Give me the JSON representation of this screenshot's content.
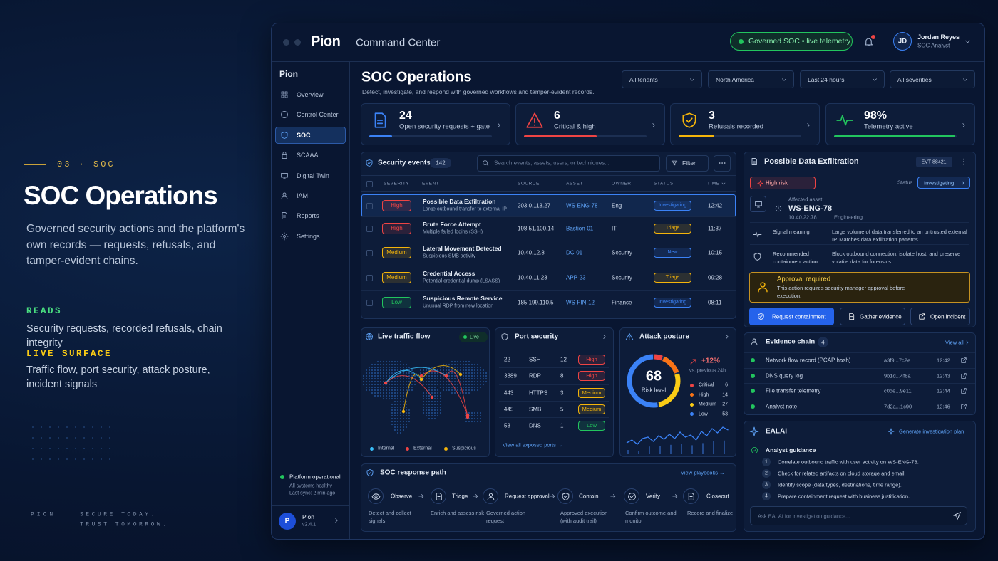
{
  "intro": {
    "eyebrow": "03 · SOC",
    "title": "SOC Operations",
    "description": "Governed security actions and the platform's own records — requests, refusals, and tamper-evident chains.",
    "sections": [
      {
        "label": "READS",
        "text": "Security requests, recorded refusals, chain integrity",
        "color": "#4ade80"
      },
      {
        "label": "LIVE SURFACE",
        "text": "Traffic flow, port security, attack posture, incident signals",
        "color": "#facc15"
      }
    ],
    "footer": {
      "brand": "PION",
      "tagline": [
        "SECURE TODAY.",
        "TRUST TOMORROW."
      ]
    }
  },
  "header": {
    "brand": "Pion",
    "product": "Command Center",
    "status": "Governed SOC • live telemetry",
    "user": {
      "initials": "JD",
      "name": "Jordan Reyes",
      "role": "SOC Analyst"
    }
  },
  "sidebar": {
    "brand": "Pion",
    "items": [
      {
        "label": "Overview",
        "active": false
      },
      {
        "label": "Control Center",
        "active": false
      },
      {
        "label": "SOC",
        "active": true
      },
      {
        "label": "SCAAA",
        "active": false
      },
      {
        "label": "Digital Twin",
        "active": false
      },
      {
        "label": "IAM",
        "active": false
      },
      {
        "label": "Reports",
        "active": false
      },
      {
        "label": "Settings",
        "active": false
      }
    ],
    "status": {
      "title": "Platform operational",
      "detail": "All systems healthy",
      "sync": "Last sync: 2 min ago"
    },
    "workspace": {
      "initial": "P",
      "name": "Pion",
      "version": "v2.4.1"
    }
  },
  "page": {
    "title": "SOC Operations",
    "subtitle": "Detect, investigate, and respond with governed workflows and tamper-evident records.",
    "filters": [
      "All tenants",
      "North America",
      "Last 24 hours",
      "All severities"
    ]
  },
  "kpis": [
    {
      "value": "24",
      "label": "Open security requests + gate",
      "color": "#3b82f6"
    },
    {
      "value": "6",
      "label": "Critical & high",
      "color": "#ef4444"
    },
    {
      "value": "3",
      "label": "Refusals recorded",
      "color": "#f5b50b"
    },
    {
      "value": "98%",
      "label": "Telemetry active",
      "color": "#22c55e"
    }
  ],
  "events": {
    "title": "Security events",
    "count": "142",
    "search": "Search events, assets, users, or techniques...",
    "filter": "Filter",
    "columns": [
      "SEVERITY",
      "EVENT",
      "SOURCE",
      "ASSET",
      "OWNER",
      "STATUS",
      "TIME"
    ],
    "rows": [
      {
        "severity": "High",
        "severity_color": "#ef4444",
        "event": "Possible Data Exfiltration",
        "detail": "Large outbound transfer to external IP",
        "source": "203.0.113.27",
        "asset": "WS-ENG-78",
        "owner": "Eng",
        "status": "Investigating",
        "status_color": "#3b82f6",
        "time": "12:42"
      },
      {
        "severity": "High",
        "severity_color": "#ef4444",
        "event": "Brute Force Attempt",
        "detail": "Multiple failed logins (SSH)",
        "source": "198.51.100.14",
        "asset": "Bastion-01",
        "owner": "IT",
        "status": "Triage",
        "status_color": "#f5b50b",
        "time": "11:37"
      },
      {
        "severity": "Medium",
        "severity_color": "#f5b50b",
        "event": "Lateral Movement Detected",
        "detail": "Suspicious SMB activity",
        "source": "10.40.12.8",
        "asset": "DC-01",
        "owner": "Security",
        "status": "New",
        "status_color": "#3b82f6",
        "time": "10:15"
      },
      {
        "severity": "Medium",
        "severity_color": "#f5b50b",
        "event": "Credential Access",
        "detail": "Potential credential dump (LSASS)",
        "source": "10.40.11.23",
        "asset": "APP-23",
        "owner": "Security",
        "status": "Triage",
        "status_color": "#f5b50b",
        "time": "09:28"
      },
      {
        "severity": "Low",
        "severity_color": "#22c55e",
        "event": "Suspicious Remote Service",
        "detail": "Unusual RDP from new location",
        "source": "185.199.110.5",
        "asset": "WS-FIN-12",
        "owner": "Finance",
        "status": "Investigating",
        "status_color": "#3b82f6",
        "time": "08:11"
      }
    ]
  },
  "detail": {
    "title": "Possible Data Exfiltration",
    "id": "EVT-88421",
    "risk": "High risk",
    "status_label": "Status",
    "status": "Investigating",
    "asset_label": "Affected asset",
    "asset": "WS-ENG-78",
    "ip": "10.40.22.78",
    "department": "Engineering",
    "fields": [
      {
        "label": "Signal meaning",
        "text": "Large volume of data transferred to an untrusted external IP. Matches data exfiltration patterns."
      },
      {
        "label": "Recommended containment action",
        "text": "Block outbound connection, isolate host, and preserve volatile data for forensics."
      }
    ],
    "approval": {
      "title": "Approval required",
      "text": "This action requires security manager approval before execution."
    },
    "actions": [
      "Request containment",
      "Gather evidence",
      "Open incident"
    ]
  },
  "evidence": {
    "title": "Evidence chain",
    "count": "4",
    "link": "View all",
    "items": [
      {
        "name": "Network flow record (PCAP hash)",
        "hash": "a3f9...7c2e",
        "time": "12:42"
      },
      {
        "name": "DNS query log",
        "hash": "9b1d...4f8a",
        "time": "12:43"
      },
      {
        "name": "File transfer telemetry",
        "hash": "c0de...9e11",
        "time": "12:44"
      },
      {
        "name": "Analyst note",
        "hash": "7d2a...1c90",
        "time": "12:46"
      }
    ]
  },
  "assistant": {
    "title": "EALAI",
    "action": "Generate investigation plan",
    "guidance": "Analyst guidance",
    "steps": [
      {
        "number": "1",
        "text": "Correlate outbound traffic with user activity on WS-ENG-78."
      },
      {
        "number": "2",
        "text": "Check for related artifacts on cloud storage and email."
      },
      {
        "number": "3",
        "text": "Identify scope (data types, destinations, time range)."
      },
      {
        "number": "4",
        "text": "Prepare containment request with business justification."
      }
    ],
    "placeholder": "Ask EALAI for investigation guidance..."
  },
  "traffic": {
    "title": "Live traffic flow",
    "badge": "Live",
    "legend": [
      {
        "label": "Internal",
        "color": "#38bdf8"
      },
      {
        "label": "External",
        "color": "#ef4444"
      },
      {
        "label": "Suspicious",
        "color": "#f5b50b"
      }
    ]
  },
  "ports": {
    "title": "Port security",
    "link": "View all exposed ports →",
    "rows": [
      {
        "port": "22",
        "service": "SSH",
        "count": "12",
        "risk": "High",
        "color": "#ef4444"
      },
      {
        "port": "3389",
        "service": "RDP",
        "count": "8",
        "risk": "High",
        "color": "#ef4444"
      },
      {
        "port": "443",
        "service": "HTTPS",
        "count": "3",
        "risk": "Medium",
        "color": "#f5b50b"
      },
      {
        "port": "445",
        "service": "SMB",
        "count": "5",
        "risk": "Medium",
        "color": "#f5b50b"
      },
      {
        "port": "53",
        "service": "DNS",
        "count": "1",
        "risk": "Low",
        "color": "#22c55e"
      }
    ]
  },
  "posture": {
    "title": "Attack posture",
    "score": "68",
    "score_label": "Risk level",
    "change": "+12%",
    "change_label": "vs. previous 24h",
    "levels": [
      {
        "label": "Critical",
        "count": 6,
        "color": "#ef4444"
      },
      {
        "label": "High",
        "count": 14,
        "color": "#f97316"
      },
      {
        "label": "Medium",
        "count": 27,
        "color": "#facc15"
      },
      {
        "label": "Low",
        "count": 53,
        "color": "#3b82f6"
      }
    ]
  },
  "response": {
    "title": "SOC response path",
    "link": "View playbooks →",
    "steps": [
      {
        "name": "Observe",
        "detail": "Detect and collect signals"
      },
      {
        "name": "Triage",
        "detail": "Enrich and assess risk"
      },
      {
        "name": "Request approval",
        "detail": "Governed action request"
      },
      {
        "name": "Contain",
        "detail": "Approved execution (with audit trail)"
      },
      {
        "name": "Verify",
        "detail": "Confirm outcome and monitor"
      },
      {
        "name": "Closeout",
        "detail": "Record and finalize"
      }
    ]
  }
}
